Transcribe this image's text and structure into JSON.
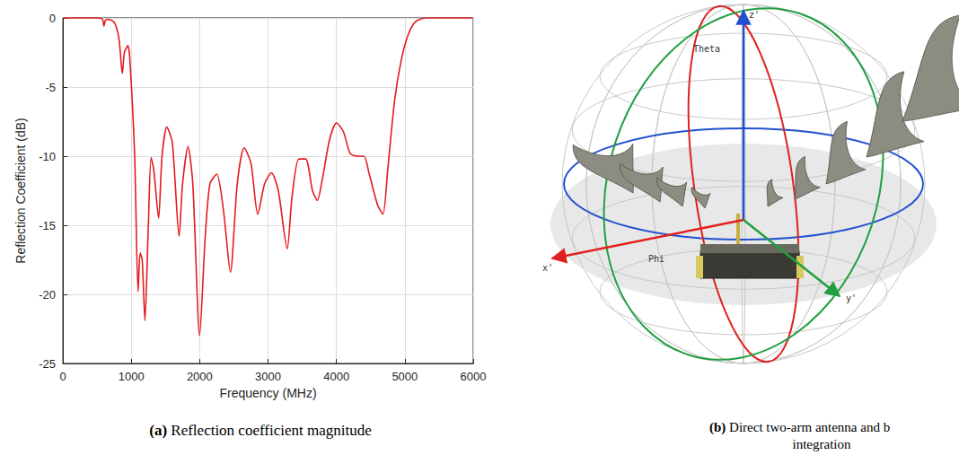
{
  "chart_data": {
    "type": "line",
    "x_label": "Frequency (MHz)",
    "y_label": "Reflection Coefficient (dB)",
    "caption": "(a) Reflection coefficient magnitude",
    "x": [
      0,
      500,
      580,
      600,
      620,
      650,
      750,
      820,
      870,
      900,
      950,
      980,
      1050,
      1100,
      1130,
      1160,
      1200,
      1250,
      1290,
      1330,
      1400,
      1450,
      1520,
      1600,
      1700,
      1750,
      1830,
      1900,
      2000,
      2080,
      2150,
      2250,
      2350,
      2450,
      2550,
      2650,
      2750,
      2850,
      2950,
      3050,
      3150,
      3280,
      3350,
      3450,
      3550,
      3650,
      3720,
      3800,
      3900,
      4000,
      4100,
      4200,
      4300,
      4400,
      4480,
      4600,
      4680,
      4750,
      4850,
      4950,
      5050,
      5150,
      5300,
      6000
    ],
    "values": [
      0,
      0,
      -0.1,
      -0.6,
      -0.2,
      -0.1,
      -0.3,
      -1.5,
      -4.0,
      -2.5,
      -2.0,
      -3.0,
      -10.0,
      -19.8,
      -17.0,
      -17.5,
      -21.9,
      -15.0,
      -10.1,
      -11.0,
      -14.5,
      -10.0,
      -7.9,
      -9.0,
      -15.8,
      -12.0,
      -9.3,
      -12.0,
      -23.0,
      -16.0,
      -12.0,
      -11.3,
      -14.0,
      -18.4,
      -12.0,
      -9.4,
      -10.5,
      -14.2,
      -12.0,
      -11.2,
      -12.5,
      -16.7,
      -13.0,
      -10.2,
      -10.2,
      -12.5,
      -13.2,
      -11.5,
      -8.8,
      -7.6,
      -8.2,
      -9.8,
      -10.0,
      -10.0,
      -11.3,
      -13.5,
      -14.2,
      -11.0,
      -6.0,
      -3.0,
      -1.2,
      -0.3,
      0,
      0
    ],
    "color": "#e41a1c",
    "xlim": [
      0,
      6000
    ],
    "xticks": [
      0,
      1000,
      2000,
      3000,
      4000,
      5000,
      6000
    ],
    "ylim": [
      -25,
      0
    ],
    "yticks": [
      -25,
      -20,
      -15,
      -10,
      -5,
      0
    ],
    "grid": true
  },
  "diagram": {
    "caption": [
      "(b) Direct two-arm antenna and b",
      "integration"
    ],
    "axes": {
      "z": "z'",
      "x": "x'",
      "y": "y'"
    },
    "angles": {
      "theta": "Theta",
      "phi": "Phi"
    }
  }
}
